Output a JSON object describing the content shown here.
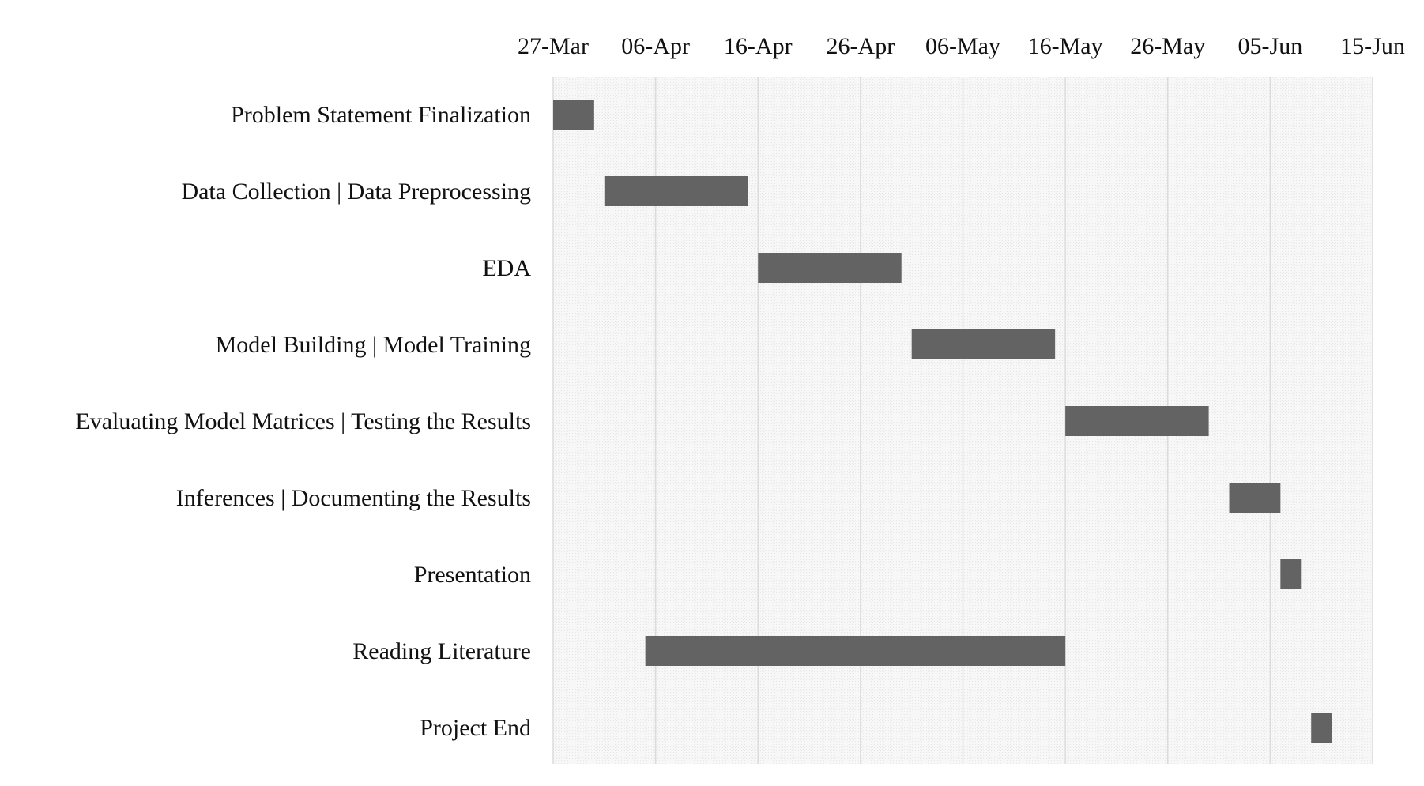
{
  "chart_data": {
    "type": "bar",
    "orientation": "horizontal",
    "subtype": "gantt",
    "title": "",
    "xlabel": "",
    "ylabel": "",
    "x_axis_position": "top",
    "xlim": [
      "2023-03-27",
      "2023-06-15"
    ],
    "x_ticks": [
      "27-Mar",
      "06-Apr",
      "16-Apr",
      "26-Apr",
      "06-May",
      "16-May",
      "26-May",
      "05-Jun",
      "15-Jun"
    ],
    "x_tick_dates": [
      "2023-03-27",
      "2023-04-06",
      "2023-04-16",
      "2023-04-26",
      "2023-05-06",
      "2023-05-16",
      "2023-05-26",
      "2023-06-05",
      "2023-06-15"
    ],
    "grid": "vertical",
    "legend": "none",
    "bar_color": "#636363",
    "background_color": "#f4f4f4",
    "gridline_color": "#dcdcdc",
    "tasks": [
      {
        "label": "Problem Statement Finalization",
        "start": "2023-03-27",
        "end": "2023-03-31"
      },
      {
        "label": "Data Collection | Data Preprocessing",
        "start": "2023-04-01",
        "end": "2023-04-15"
      },
      {
        "label": "EDA",
        "start": "2023-04-16",
        "end": "2023-04-30"
      },
      {
        "label": "Model Building  | Model Training",
        "start": "2023-05-01",
        "end": "2023-05-15"
      },
      {
        "label": "Evaluating Model Matrices | Testing the Results",
        "start": "2023-05-16",
        "end": "2023-05-30"
      },
      {
        "label": "Inferences | Documenting the Results",
        "start": "2023-06-01",
        "end": "2023-06-06"
      },
      {
        "label": "Presentation",
        "start": "2023-06-06",
        "end": "2023-06-08"
      },
      {
        "label": "Reading Literature",
        "start": "2023-04-05",
        "end": "2023-05-16"
      },
      {
        "label": "Project End",
        "start": "2023-06-09",
        "end": "2023-06-11"
      }
    ]
  }
}
